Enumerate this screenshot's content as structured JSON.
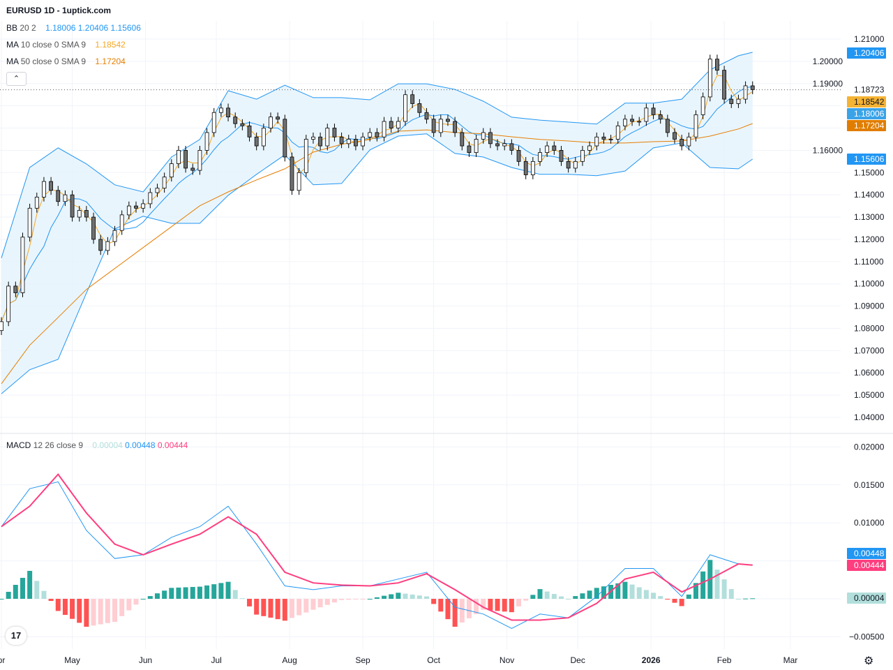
{
  "header": {
    "title": "EURUSD 1D - 1uptick.com"
  },
  "legend": {
    "bb": {
      "name": "BB",
      "params": "20 2",
      "basis": "1.18006",
      "upper": "1.20406",
      "lower": "1.15606"
    },
    "ma10": {
      "name": "MA",
      "params": "10 close 0 SMA 9",
      "value": "1.18542"
    },
    "ma50": {
      "name": "MA",
      "params": "50 close 0 SMA 9",
      "value": "1.17204"
    },
    "macd": {
      "name": "MACD",
      "params": "12 26 close 9",
      "hist": "0.00004",
      "macd": "0.00448",
      "signal": "0.00444"
    },
    "collapse_icon": "chevron-up-icon"
  },
  "colors": {
    "bb": "#2196f3",
    "bb_fill": "#e3f2fd",
    "ma10": "#f5a623",
    "ma50": "#e67e00",
    "macd": "#2196f3",
    "signal": "#ff3d7f",
    "hist_up_strong": "#26a69a",
    "hist_up_weak": "#b2dfdb",
    "hist_down_strong": "#ff5252",
    "hist_down_weak": "#ffcdd2",
    "candle_up": "#ffffff",
    "candle_down": "#707070"
  },
  "chart_data": {
    "type": "candlestick",
    "price_axis": {
      "range": [
        1.04,
        1.21
      ],
      "ticks": [
        "1.21000",
        "1.20000",
        "1.19000",
        "1.16000",
        "1.15000",
        "1.14000",
        "1.13000",
        "1.12000",
        "1.11000",
        "1.10000",
        "1.09000",
        "1.08000",
        "1.07000",
        "1.06000",
        "1.05000",
        "1.04000"
      ]
    },
    "macd_axis": {
      "range": [
        -0.005,
        0.02
      ],
      "ticks": [
        "0.02000",
        "0.01500",
        "0.01000",
        "-0.00500"
      ]
    },
    "time_axis": {
      "labels": [
        {
          "t": "pr",
          "date": "2025-04-01"
        },
        {
          "t": "May",
          "date": "2025-05-01"
        },
        {
          "t": "Jun",
          "date": "2025-06-01"
        },
        {
          "t": "Jul",
          "date": "2025-07-01"
        },
        {
          "t": "Aug",
          "date": "2025-08-01"
        },
        {
          "t": "Sep",
          "date": "2025-09-01"
        },
        {
          "t": "Oct",
          "date": "2025-10-01"
        },
        {
          "t": "Nov",
          "date": "2025-11-01"
        },
        {
          "t": "Dec",
          "date": "2025-12-01"
        },
        {
          "t": "2026",
          "date": "2026-01-01",
          "bold": true
        },
        {
          "t": "Feb",
          "date": "2026-02-01"
        },
        {
          "t": "Mar",
          "date": "2026-03-01"
        }
      ]
    },
    "last_price": "1.18723",
    "badges": {
      "bb_upper": "1.20406",
      "ma10": "1.18542",
      "bb_basis": "1.18006",
      "ma50": "1.17204",
      "bb_lower": "1.15606",
      "macd": "0.00448",
      "signal": "0.00444",
      "hist": "0.00004"
    },
    "price": {
      "dates": [
        "2025-04-01",
        "2025-04-04",
        "2025-04-07",
        "2025-04-10",
        "2025-04-13",
        "2025-04-16",
        "2025-04-19",
        "2025-04-22",
        "2025-04-25",
        "2025-04-28",
        "2025-05-01",
        "2025-05-04",
        "2025-05-07",
        "2025-05-10",
        "2025-05-13",
        "2025-05-16",
        "2025-05-19",
        "2025-05-22",
        "2025-05-25",
        "2025-05-28",
        "2025-05-31",
        "2025-06-03",
        "2025-06-06",
        "2025-06-09",
        "2025-06-12",
        "2025-06-15",
        "2025-06-18",
        "2025-06-21",
        "2025-06-24",
        "2025-06-27",
        "2025-06-30",
        "2025-07-03",
        "2025-07-06",
        "2025-07-09",
        "2025-07-12",
        "2025-07-15",
        "2025-07-18",
        "2025-07-21",
        "2025-07-24",
        "2025-07-27",
        "2025-07-30",
        "2025-08-02",
        "2025-08-05",
        "2025-08-08",
        "2025-08-11",
        "2025-08-14",
        "2025-08-17",
        "2025-08-20",
        "2025-08-23",
        "2025-08-26",
        "2025-08-29",
        "2025-09-01",
        "2025-09-04",
        "2025-09-07",
        "2025-09-10",
        "2025-09-13",
        "2025-09-16",
        "2025-09-19",
        "2025-09-22",
        "2025-09-25",
        "2025-09-28",
        "2025-10-01",
        "2025-10-04",
        "2025-10-07",
        "2025-10-10",
        "2025-10-13",
        "2025-10-16",
        "2025-10-19",
        "2025-10-22",
        "2025-10-25",
        "2025-10-28",
        "2025-10-31",
        "2025-11-03",
        "2025-11-06",
        "2025-11-09",
        "2025-11-12",
        "2025-11-15",
        "2025-11-18",
        "2025-11-21",
        "2025-11-24",
        "2025-11-27",
        "2025-11-30",
        "2025-12-03",
        "2025-12-06",
        "2025-12-09",
        "2025-12-12",
        "2025-12-15",
        "2025-12-18",
        "2025-12-21",
        "2025-12-24",
        "2025-12-27",
        "2025-12-30",
        "2026-01-02",
        "2026-01-05",
        "2026-01-08",
        "2026-01-11",
        "2026-01-14",
        "2026-01-17",
        "2026-01-20",
        "2026-01-23",
        "2026-01-26",
        "2026-01-29",
        "2026-02-01",
        "2026-02-04",
        "2026-02-07",
        "2026-02-10",
        "2026-02-13"
      ],
      "close": [
        1.083,
        1.099,
        1.096,
        1.121,
        1.134,
        1.139,
        1.146,
        1.142,
        1.137,
        1.14,
        1.13,
        1.133,
        1.13,
        1.12,
        1.115,
        1.119,
        1.124,
        1.131,
        1.135,
        1.134,
        1.136,
        1.141,
        1.143,
        1.148,
        1.154,
        1.16,
        1.152,
        1.151,
        1.16,
        1.168,
        1.177,
        1.179,
        1.175,
        1.172,
        1.171,
        1.166,
        1.162,
        1.17,
        1.175,
        1.174,
        1.157,
        1.142,
        1.15,
        1.165,
        1.166,
        1.162,
        1.17,
        1.166,
        1.163,
        1.165,
        1.162,
        1.166,
        1.168,
        1.166,
        1.173,
        1.17,
        1.173,
        1.185,
        1.181,
        1.177,
        1.174,
        1.168,
        1.174,
        1.173,
        1.168,
        1.162,
        1.159,
        1.165,
        1.168,
        1.163,
        1.162,
        1.163,
        1.16,
        1.155,
        1.149,
        1.155,
        1.159,
        1.162,
        1.16,
        1.155,
        1.152,
        1.155,
        1.16,
        1.162,
        1.166,
        1.165,
        1.165,
        1.171,
        1.174,
        1.173,
        1.173,
        1.179,
        1.176,
        1.174,
        1.168,
        1.165,
        1.162,
        1.166,
        1.176,
        1.184,
        1.201,
        1.196,
        1.183,
        1.181,
        1.183,
        1.189,
        1.18723
      ]
    },
    "indicators": {
      "dates": [
        "2025-04-01",
        "2025-04-13",
        "2025-04-25",
        "2025-05-07",
        "2025-05-19",
        "2025-05-31",
        "2025-06-12",
        "2025-06-24",
        "2025-07-06",
        "2025-07-18",
        "2025-07-30",
        "2025-08-11",
        "2025-08-23",
        "2025-09-04",
        "2025-09-16",
        "2025-09-28",
        "2025-10-10",
        "2025-10-22",
        "2025-11-03",
        "2025-11-15",
        "2025-11-27",
        "2025-12-09",
        "2025-12-21",
        "2026-01-02",
        "2026-01-14",
        "2026-01-26",
        "2026-02-07",
        "2026-02-13"
      ],
      "bb_upper": [
        1.1116,
        1.1523,
        1.1611,
        1.1539,
        1.1445,
        1.1413,
        1.157,
        1.1649,
        1.1868,
        1.183,
        1.1893,
        1.1837,
        1.1837,
        1.1827,
        1.1899,
        1.1899,
        1.1874,
        1.1821,
        1.1749,
        1.1736,
        1.1727,
        1.1718,
        1.1812,
        1.1812,
        1.183,
        1.1962,
        1.2025,
        1.20406
      ],
      "bb_lower": [
        1.0506,
        1.0614,
        1.0661,
        1.0959,
        1.1247,
        1.1304,
        1.1272,
        1.1272,
        1.1398,
        1.1492,
        1.158,
        1.1445,
        1.1451,
        1.1602,
        1.1664,
        1.1674,
        1.1586,
        1.157,
        1.1523,
        1.1492,
        1.1492,
        1.1486,
        1.1507,
        1.1611,
        1.1633,
        1.1523,
        1.1517,
        1.15606
      ],
      "ma50": [
        1.0551,
        1.0724,
        1.0849,
        1.0975,
        1.1069,
        1.1163,
        1.1257,
        1.1351,
        1.1413,
        1.1467,
        1.1517,
        1.1592,
        1.1627,
        1.1649,
        1.1686,
        1.1692,
        1.168,
        1.1674,
        1.1661,
        1.1649,
        1.1642,
        1.1633,
        1.1633,
        1.1639,
        1.1642,
        1.1664,
        1.1696,
        1.17204
      ],
      "macd": [
        0.0095,
        0.0145,
        0.0154,
        0.009,
        0.0053,
        0.0058,
        0.0081,
        0.0095,
        0.0122,
        0.0072,
        0.0017,
        0.0012,
        0.0017,
        0.0017,
        0.0026,
        0.0035,
        -0.0011,
        -0.002,
        -0.0039,
        -0.002,
        -0.0025,
        0.0003,
        0.004,
        0.004,
        0.0003,
        0.0058,
        0.0046,
        0.00448
      ],
      "signal": [
        0.0095,
        0.0122,
        0.0164,
        0.0113,
        0.0072,
        0.0058,
        0.0072,
        0.0085,
        0.0108,
        0.0085,
        0.0035,
        0.0021,
        0.0018,
        0.0017,
        0.0021,
        0.0033,
        0.0012,
        -0.0011,
        -0.0028,
        -0.0028,
        -0.0025,
        -0.0006,
        0.0026,
        0.0035,
        0.0009,
        0.0026,
        0.0046,
        0.00444
      ]
    }
  }
}
